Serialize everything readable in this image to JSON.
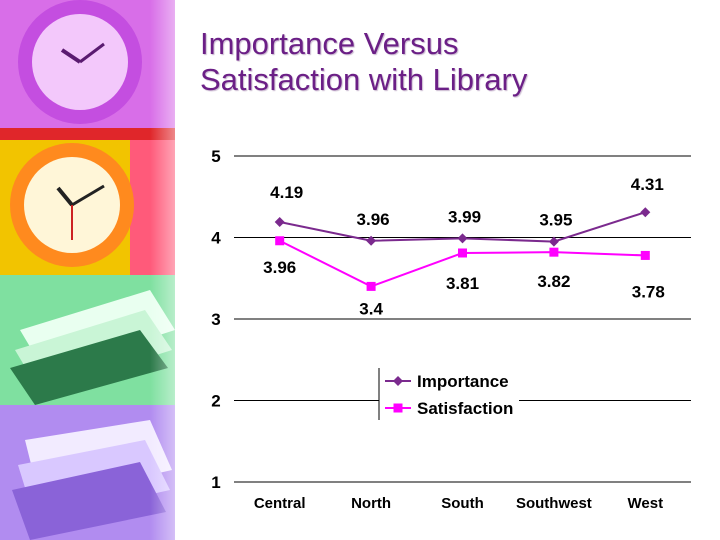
{
  "slide": {
    "title_line1": "Importance Versus",
    "title_line2": "Satisfaction with Library"
  },
  "decor": {
    "panels": [
      "purple-clock",
      "yellow-clock",
      "green-books",
      "violet-books"
    ],
    "panel_colors": [
      "#d86ee8",
      "#f2c400",
      "#7fe0a0",
      "#b18cf0"
    ]
  },
  "chart_data": {
    "type": "line",
    "categories": [
      "Central",
      "North",
      "South",
      "Southwest",
      "West"
    ],
    "series": [
      {
        "name": "Importance",
        "values": [
          4.19,
          3.96,
          3.99,
          3.95,
          4.31
        ],
        "color": "#7b2a8e",
        "marker": "diamond"
      },
      {
        "name": "Satisfaction",
        "values": [
          3.96,
          3.4,
          3.81,
          3.82,
          3.78
        ],
        "color": "#ff00ff",
        "marker": "square"
      }
    ],
    "data_labels": {
      "Importance": [
        "4.19",
        "3.96",
        "3.99",
        "3.95",
        "4.31"
      ],
      "Satisfaction": [
        "3.96",
        "3.4",
        "3.81",
        "3.82",
        "3.78"
      ]
    },
    "yticks": [
      "1",
      "2",
      "3",
      "4",
      "5"
    ],
    "ylim": [
      1,
      5
    ],
    "grid": true,
    "legend": "center",
    "title": "",
    "xlabel": "",
    "ylabel": ""
  }
}
